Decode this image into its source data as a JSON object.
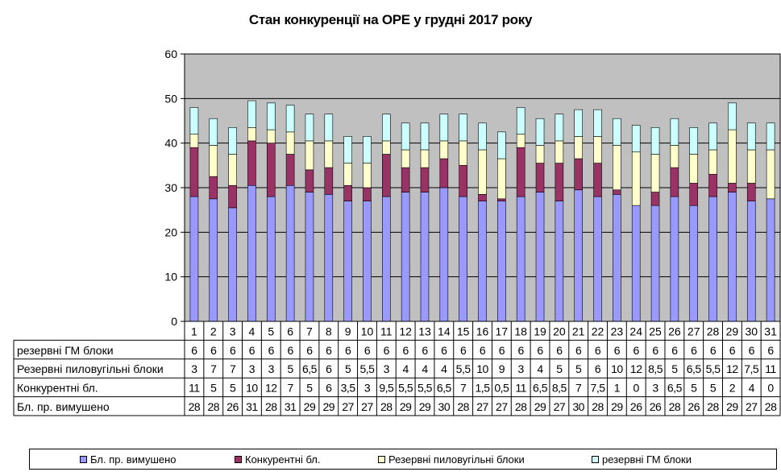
{
  "chart_data": {
    "type": "bar",
    "stacked": true,
    "title": "Стан конкуренції на ОРЕ  у грудні 2017 року",
    "xlabel": "",
    "ylabel": "",
    "ylim": [
      0,
      60
    ],
    "yticks": [
      0,
      10,
      20,
      30,
      40,
      50,
      60
    ],
    "grid": true,
    "legend_position": "bottom",
    "categories": [
      "1",
      "2",
      "3",
      "4",
      "5",
      "6",
      "7",
      "8",
      "9",
      "10",
      "11",
      "12",
      "13",
      "14",
      "15",
      "16",
      "17",
      "18",
      "19",
      "20",
      "21",
      "22",
      "23",
      "24",
      "25",
      "26",
      "27",
      "28",
      "29",
      "30",
      "31"
    ],
    "series": [
      {
        "name": "Бл. пр. вимушено",
        "color": "#9999ff",
        "values": [
          28,
          27.5,
          25.5,
          30.5,
          28,
          30.5,
          29,
          28.5,
          27,
          27,
          28,
          29,
          29,
          30,
          28,
          27,
          27,
          28,
          29,
          27,
          29.5,
          28,
          28.5,
          26,
          26,
          28,
          26,
          28,
          29,
          27,
          27.5
        ],
        "labels": [
          "28",
          "28",
          "26",
          "31",
          "28",
          "31",
          "29",
          "29",
          "27",
          "27",
          "28",
          "29",
          "29",
          "30",
          "28",
          "27",
          "27",
          "28",
          "29",
          "27",
          "30",
          "28",
          "29",
          "26",
          "26",
          "28",
          "26",
          "28",
          "29",
          "27",
          "28"
        ]
      },
      {
        "name": "Конкурентні  бл.",
        "color": "#993366",
        "values": [
          11,
          5,
          5,
          10,
          12,
          7,
          5,
          6,
          3.5,
          3,
          9.5,
          5.5,
          5.5,
          6.5,
          7,
          1.5,
          0.5,
          11,
          6.5,
          8.5,
          7,
          7.5,
          1,
          0,
          3,
          6.5,
          5,
          5,
          2,
          4,
          0
        ],
        "labels": [
          "11",
          "5",
          "5",
          "10",
          "12",
          "7",
          "5",
          "6",
          "3,5",
          "3",
          "9,5",
          "5,5",
          "5,5",
          "6,5",
          "7",
          "1,5",
          "0,5",
          "11",
          "6,5",
          "8,5",
          "7",
          "7,5",
          "1",
          "0",
          "3",
          "6,5",
          "5",
          "5",
          "2",
          "4",
          "0"
        ]
      },
      {
        "name": "Резервні пиловугільні  блоки",
        "color": "#ffffcc",
        "values": [
          3,
          7,
          7,
          3,
          3,
          5,
          6.5,
          6,
          5,
          5.5,
          3,
          4,
          4,
          4,
          5.5,
          10,
          9,
          3,
          4,
          5,
          5,
          6,
          10,
          12,
          8.5,
          5,
          6.5,
          5.5,
          12,
          7.5,
          11
        ],
        "labels": [
          "3",
          "7",
          "7",
          "3",
          "3",
          "5",
          "6,5",
          "6",
          "5",
          "5,5",
          "3",
          "4",
          "4",
          "4",
          "5,5",
          "10",
          "9",
          "3",
          "4",
          "5",
          "5",
          "6",
          "10",
          "12",
          "8,5",
          "5",
          "6,5",
          "5,5",
          "12",
          "7,5",
          "11"
        ]
      },
      {
        "name": "резервні ГМ блоки",
        "color": "#ccffff",
        "values": [
          6,
          6,
          6,
          6,
          6,
          6,
          6,
          6,
          6,
          6,
          6,
          6,
          6,
          6,
          6,
          6,
          6,
          6,
          6,
          6,
          6,
          6,
          6,
          6,
          6,
          6,
          6,
          6,
          6,
          6,
          6
        ],
        "labels": [
          "6",
          "6",
          "6",
          "6",
          "6",
          "6",
          "6",
          "6",
          "6",
          "6",
          "6",
          "6",
          "6",
          "6",
          "6",
          "6",
          "6",
          "6",
          "6",
          "6",
          "6",
          "6",
          "6",
          "6",
          "6",
          "6",
          "6",
          "6",
          "6",
          "6",
          "6"
        ]
      }
    ],
    "table_row_order": [
      3,
      2,
      1,
      0
    ],
    "colors": {
      "plot_bg": "#c0c0c0",
      "bar_border": "#000000",
      "grid": "#000000"
    }
  }
}
